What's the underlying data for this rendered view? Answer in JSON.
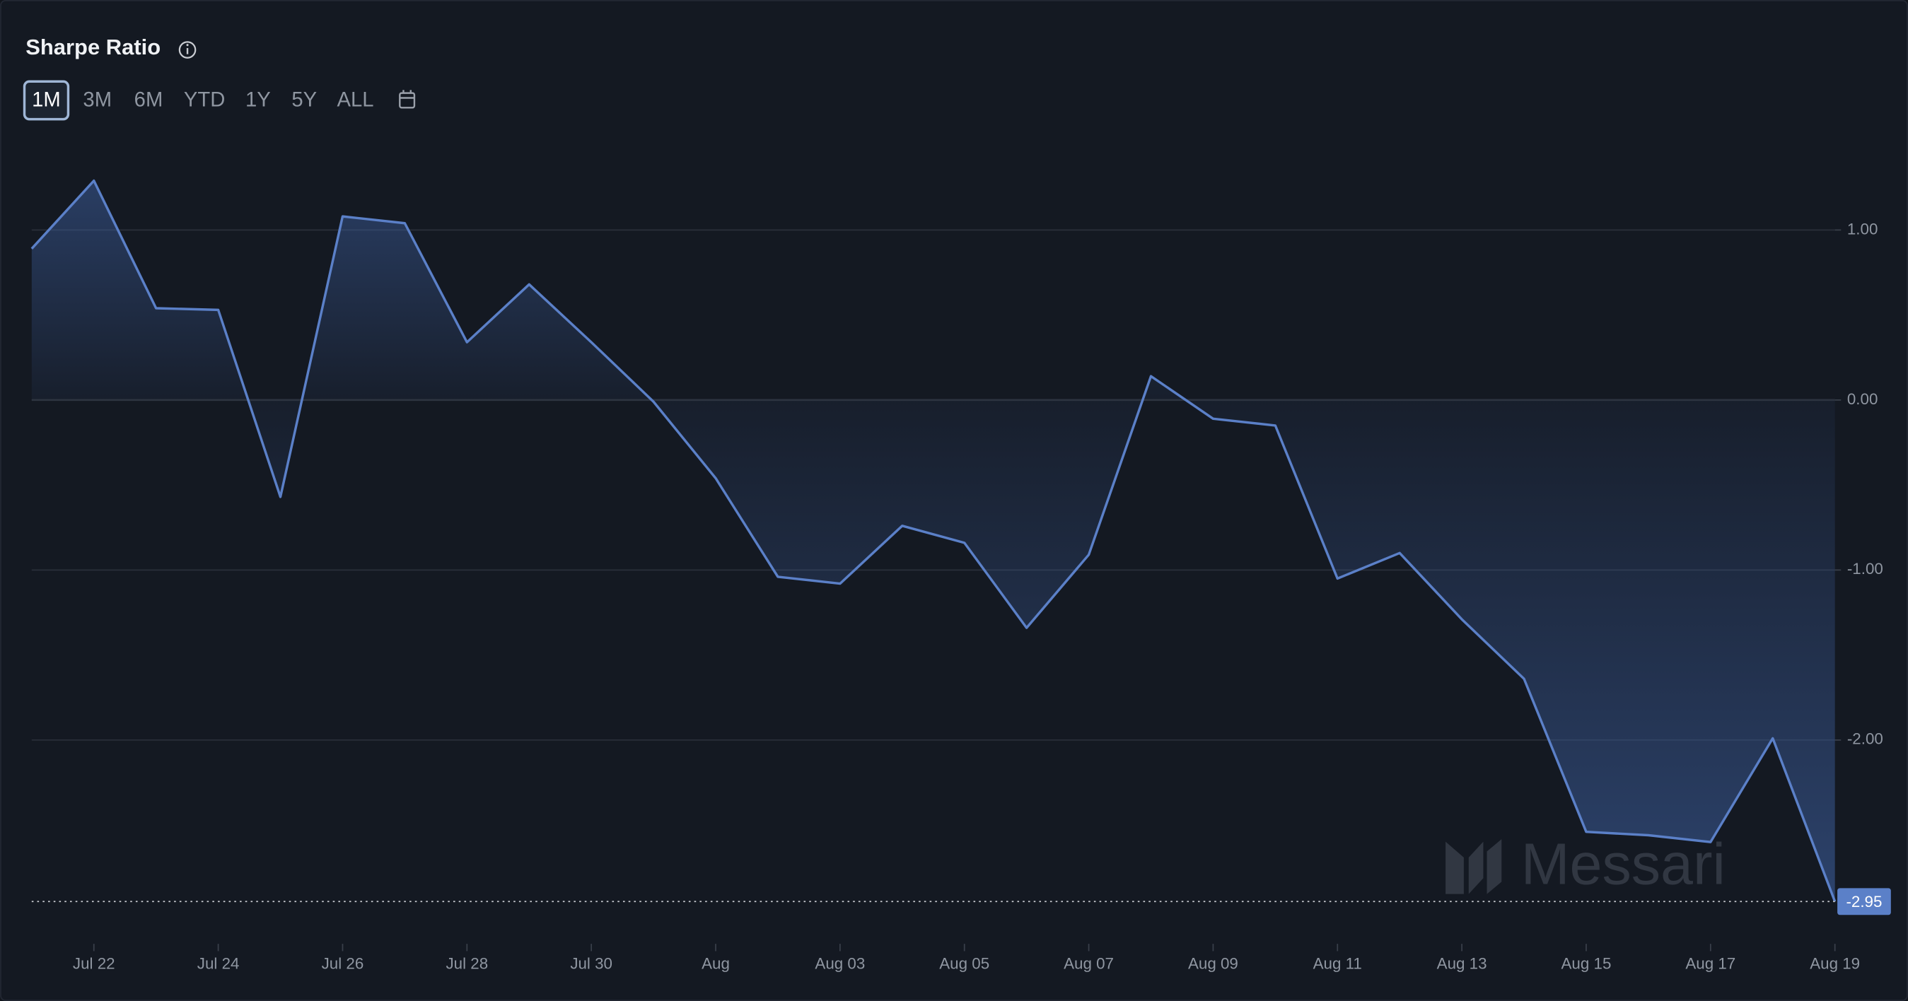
{
  "chart_data": {
    "type": "area",
    "title": "Sharpe Ratio",
    "range_options": [
      "1M",
      "3M",
      "6M",
      "YTD",
      "1Y",
      "5Y",
      "ALL"
    ],
    "selected": "1M",
    "watermark": "Messari",
    "categories": [
      null,
      "Jul 22",
      null,
      "Jul 24",
      null,
      "Jul 26",
      null,
      "Jul 28",
      null,
      "Jul 30",
      null,
      "Aug",
      null,
      "Aug 03",
      null,
      "Aug 05",
      null,
      "Aug 07",
      null,
      "Aug 09",
      null,
      "Aug 11",
      null,
      "Aug 13",
      null,
      "Aug 15",
      null,
      "Aug 17",
      null,
      "Aug 19"
    ],
    "values": [
      0.89,
      1.29,
      0.54,
      0.53,
      -0.57,
      1.08,
      1.04,
      0.34,
      0.68,
      0.34,
      -0.01,
      -0.46,
      -1.04,
      -1.08,
      -0.74,
      -0.84,
      -1.34,
      -0.91,
      0.14,
      -0.11,
      -0.15,
      -1.05,
      -0.9,
      -1.29,
      -1.64,
      -2.54,
      -2.56,
      -2.6,
      -1.99,
      -2.95
    ],
    "value_labels": [
      null,
      null,
      null,
      null,
      null,
      null,
      null,
      null,
      null,
      null,
      null,
      null,
      null,
      null,
      null,
      null,
      null,
      null,
      null,
      null,
      null,
      null,
      null,
      null,
      null,
      null,
      null,
      null,
      null,
      "-2.95"
    ],
    "color": "#5b80c8",
    "ylim": [
      -3.02,
      1.43
    ],
    "yticks": [
      {
        "value": 1,
        "label": "1.00"
      },
      {
        "value": 0,
        "label": "0.00"
      },
      {
        "value": -1,
        "label": "-1.00"
      },
      {
        "value": -2,
        "label": "-2.00"
      }
    ],
    "grid": true
  }
}
